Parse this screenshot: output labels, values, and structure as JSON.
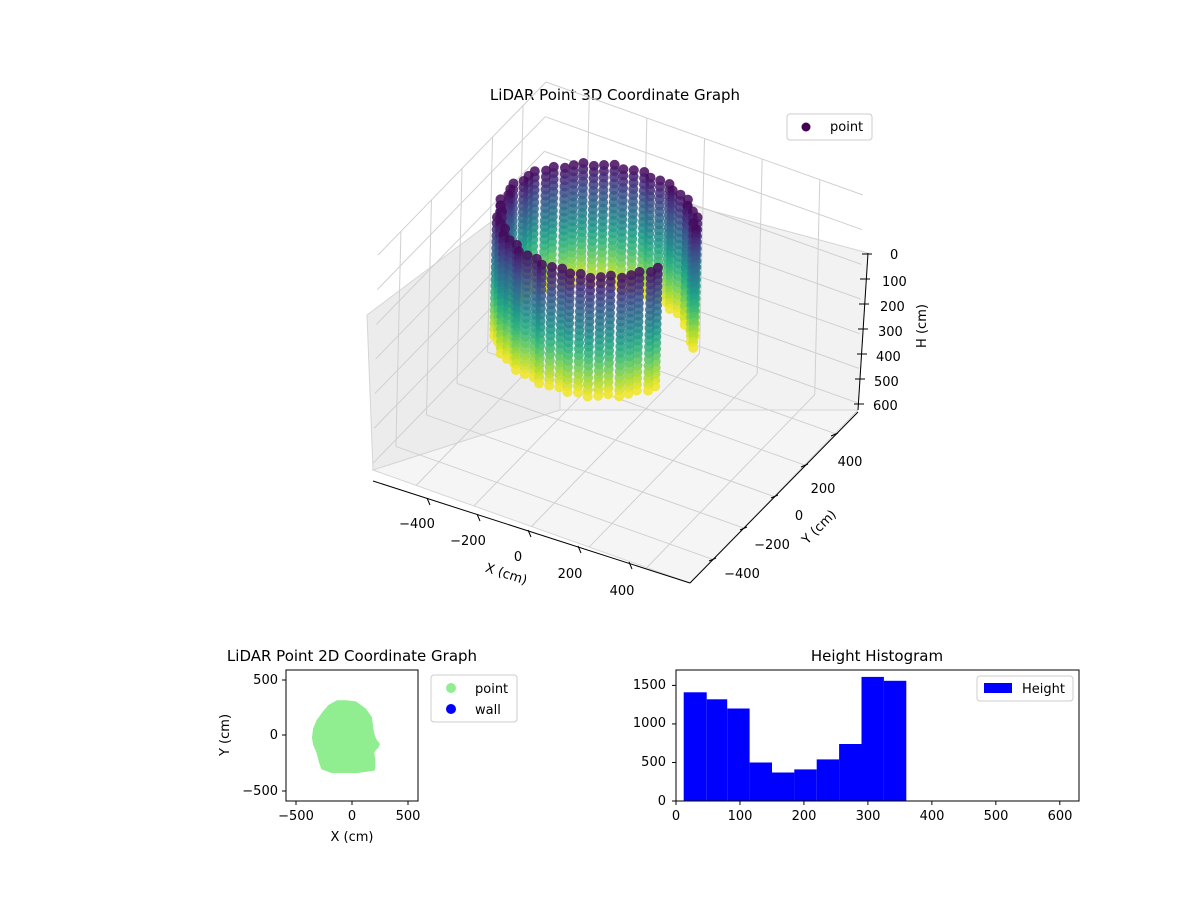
{
  "colors": {
    "point_2d": "#90ee90",
    "wall": "#0000ff",
    "histogram": "#0000ff",
    "cmap": "viridis"
  },
  "chart_data": [
    {
      "type": "scatter",
      "subtype": "3d",
      "title": "LiDAR Point 3D Coordinate Graph",
      "xlabel": "X (cm)",
      "ylabel": "Y (cm)",
      "zlabel": "H (cm)",
      "xticks": [
        "−400",
        "−200",
        "0",
        "200",
        "400"
      ],
      "yticks": [
        "−400",
        "−200",
        "0",
        "200",
        "400"
      ],
      "zticks": [
        "0",
        "100",
        "200",
        "300",
        "400",
        "500",
        "600"
      ],
      "xlim": [
        -550,
        550
      ],
      "ylim": [
        -550,
        550
      ],
      "zlim": [
        0,
        620
      ],
      "z_inverted": true,
      "legend": {
        "position": "upper-right",
        "entries": [
          "point"
        ]
      },
      "description_shape": "hollow curved wall of points, roughly cylindrical, open toward +X",
      "shape_params": {
        "center_x": -80,
        "center_y": 0,
        "radius": 300,
        "h_min": 10,
        "h_max": 360,
        "opening_angle_deg": [
          -20,
          20
        ]
      }
    },
    {
      "type": "scatter",
      "title": "LiDAR Point 2D Coordinate Graph",
      "xlabel": "X (cm)",
      "ylabel": "Y (cm)",
      "xlim": [
        -590,
        590
      ],
      "ylim": [
        -590,
        590
      ],
      "xticks": [
        "−500",
        "0",
        "500"
      ],
      "yticks": [
        "−500",
        "0",
        "500"
      ],
      "legend": {
        "position": "outside-right",
        "entries": [
          "point",
          "wall"
        ]
      },
      "series": [
        {
          "name": "point",
          "color": "#90ee90",
          "outline": [
            [
              -340,
              -20
            ],
            [
              -330,
              -80
            ],
            [
              -300,
              -150
            ],
            [
              -280,
              -230
            ],
            [
              -260,
              -290
            ],
            [
              -180,
              -320
            ],
            [
              -80,
              -320
            ],
            [
              50,
              -320
            ],
            [
              190,
              -300
            ],
            [
              190,
              -220
            ],
            [
              180,
              -150
            ],
            [
              200,
              -120
            ],
            [
              220,
              -100
            ],
            [
              230,
              -80
            ],
            [
              200,
              -40
            ],
            [
              180,
              20
            ],
            [
              170,
              90
            ],
            [
              160,
              160
            ],
            [
              110,
              230
            ],
            [
              30,
              290
            ],
            [
              -50,
              300
            ],
            [
              -130,
              300
            ],
            [
              -200,
              260
            ],
            [
              -250,
              200
            ],
            [
              -300,
              130
            ],
            [
              -330,
              60
            ]
          ]
        },
        {
          "name": "wall",
          "color": "#0000ff",
          "points": []
        }
      ]
    },
    {
      "type": "bar",
      "subtype": "histogram",
      "title": "Height Histogram",
      "xlim": [
        0,
        630
      ],
      "ylim": [
        0,
        1700
      ],
      "xticks": [
        "0",
        "100",
        "200",
        "300",
        "400",
        "500",
        "600"
      ],
      "yticks": [
        "0",
        "500",
        "1000",
        "1500"
      ],
      "legend": {
        "position": "upper-right",
        "entries": [
          "Height"
        ]
      },
      "bin_edges": [
        12,
        48,
        80,
        115,
        150,
        185,
        220,
        255,
        290,
        325,
        360
      ],
      "values": [
        1410,
        1320,
        1200,
        500,
        370,
        410,
        540,
        740,
        1610,
        1560
      ]
    }
  ]
}
